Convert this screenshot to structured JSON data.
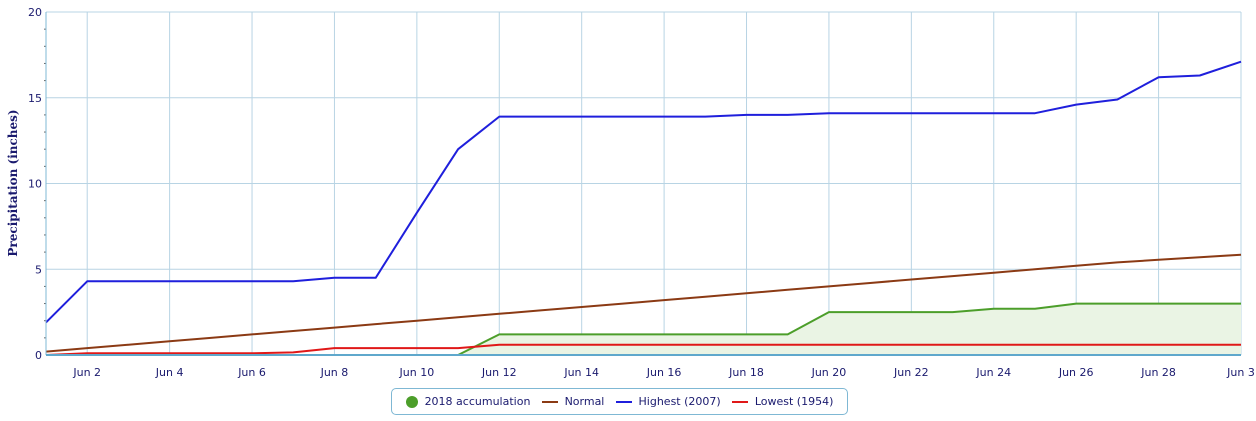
{
  "chart_data": {
    "type": "line",
    "ylabel": "Precipitation (inches)",
    "ylim": [
      0,
      20
    ],
    "yticks": [
      0,
      5,
      10,
      15,
      20
    ],
    "x": [
      "Jun 1",
      "Jun 2",
      "Jun 3",
      "Jun 4",
      "Jun 5",
      "Jun 6",
      "Jun 7",
      "Jun 8",
      "Jun 9",
      "Jun 10",
      "Jun 11",
      "Jun 12",
      "Jun 13",
      "Jun 14",
      "Jun 15",
      "Jun 16",
      "Jun 17",
      "Jun 18",
      "Jun 19",
      "Jun 20",
      "Jun 21",
      "Jun 22",
      "Jun 23",
      "Jun 24",
      "Jun 25",
      "Jun 26",
      "Jun 27",
      "Jun 28",
      "Jun 29",
      "Jun 30"
    ],
    "xtick_labels": [
      "Jun 2",
      "Jun 4",
      "Jun 6",
      "Jun 8",
      "Jun 10",
      "Jun 12",
      "Jun 14",
      "Jun 16",
      "Jun 18",
      "Jun 20",
      "Jun 22",
      "Jun 24",
      "Jun 26",
      "Jun 28",
      "Jun 3"
    ],
    "grid": true,
    "legend_position": "bottom-center",
    "series": [
      {
        "name": "2018 accumulation",
        "color": "#4c9e2a",
        "fill": "#eaf4e4",
        "style": "area",
        "values": [
          0,
          0,
          0,
          0,
          0,
          0,
          0,
          0,
          0,
          0,
          0,
          1.2,
          1.2,
          1.2,
          1.2,
          1.2,
          1.2,
          1.2,
          1.2,
          2.5,
          2.5,
          2.5,
          2.5,
          2.7,
          2.7,
          3.0,
          3.0,
          3.0,
          3.0,
          3.0
        ]
      },
      {
        "name": "Normal",
        "color": "#8b3a14",
        "style": "line",
        "values": [
          0.2,
          0.4,
          0.6,
          0.8,
          1.0,
          1.2,
          1.4,
          1.6,
          1.8,
          2.0,
          2.2,
          2.4,
          2.6,
          2.8,
          3.0,
          3.2,
          3.4,
          3.6,
          3.8,
          4.0,
          4.2,
          4.4,
          4.6,
          4.8,
          5.0,
          5.2,
          5.4,
          5.55,
          5.7,
          5.85
        ]
      },
      {
        "name": "Highest (2007)",
        "color": "#1f1fdc",
        "style": "line",
        "values": [
          1.9,
          4.3,
          4.3,
          4.3,
          4.3,
          4.3,
          4.3,
          4.5,
          4.5,
          8.3,
          12.0,
          13.9,
          13.9,
          13.9,
          13.9,
          13.9,
          13.9,
          14.0,
          14.0,
          14.1,
          14.1,
          14.1,
          14.1,
          14.1,
          14.1,
          14.6,
          14.9,
          16.2,
          16.3,
          17.1
        ]
      },
      {
        "name": "Lowest (1954)",
        "color": "#e01818",
        "style": "line",
        "values": [
          0,
          0.1,
          0.1,
          0.1,
          0.1,
          0.1,
          0.15,
          0.4,
          0.4,
          0.4,
          0.4,
          0.6,
          0.6,
          0.6,
          0.6,
          0.6,
          0.6,
          0.6,
          0.6,
          0.6,
          0.6,
          0.6,
          0.6,
          0.6,
          0.6,
          0.6,
          0.6,
          0.6,
          0.6,
          0.6
        ]
      }
    ]
  },
  "legend": {
    "items": [
      {
        "label": "2018 accumulation",
        "color": "#4c9e2a",
        "marker": "dot"
      },
      {
        "label": "Normal",
        "color": "#8b3a14",
        "marker": "line"
      },
      {
        "label": "Highest (2007)",
        "color": "#1f1fdc",
        "marker": "line"
      },
      {
        "label": "Lowest (1954)",
        "color": "#e01818",
        "marker": "line"
      }
    ]
  }
}
